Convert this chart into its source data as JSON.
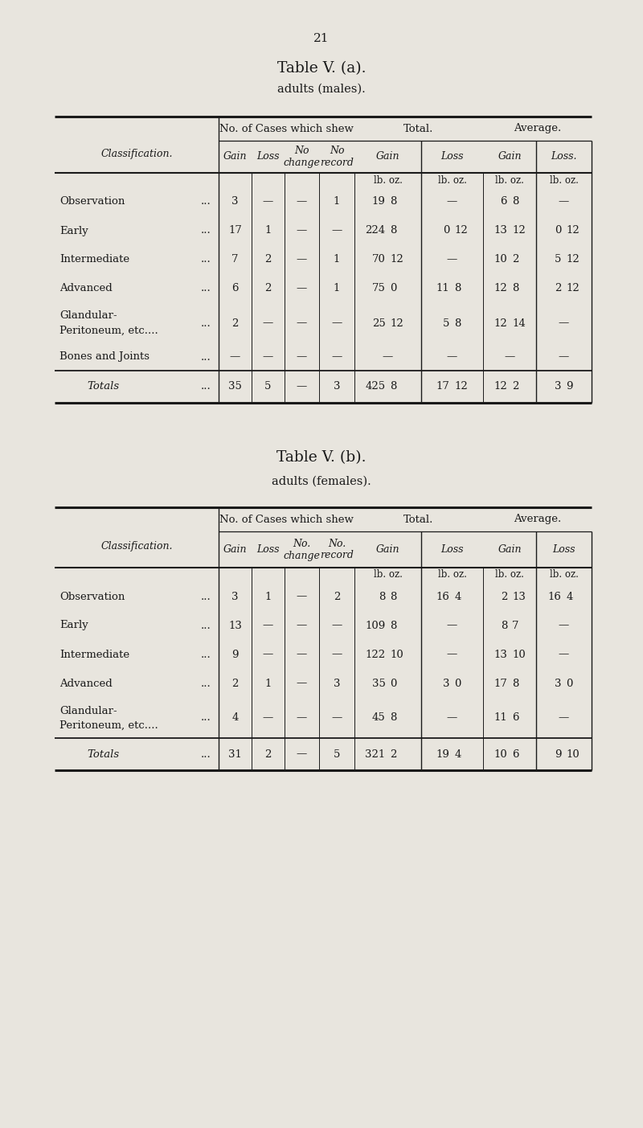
{
  "page_number": "21",
  "bg_color": "#e8e5de",
  "text_color": "#1a1a1a",
  "table_a": {
    "title1": "Table V. (a).",
    "title2": "adults (males).",
    "rows": [
      [
        "Observation",
        "3",
        "—",
        "—",
        "1",
        "19",
        "8",
        "—",
        "",
        "6",
        "8",
        "—",
        ""
      ],
      [
        "Early",
        "17",
        "1",
        "—",
        "—",
        "224",
        "8",
        "0",
        "12",
        "13",
        "12",
        "0",
        "12"
      ],
      [
        "Intermediate",
        "7",
        "2",
        "—",
        "1",
        "70",
        "12",
        "—",
        "",
        "10",
        "2",
        "5",
        "12"
      ],
      [
        "Advanced",
        "6",
        "2",
        "—",
        "1",
        "75",
        "0",
        "11",
        "8",
        "12",
        "8",
        "2",
        "12"
      ],
      [
        "Glandular-\nPeritoneum, etc....",
        "2",
        "—",
        "—",
        "—",
        "25",
        "12",
        "5",
        "8",
        "12",
        "14",
        "—",
        ""
      ],
      [
        "Bones and Joints",
        "—",
        "—",
        "—",
        "—",
        "—",
        "",
        "—",
        "",
        "—",
        "",
        "—",
        ""
      ]
    ],
    "totals_row": [
      "Totals",
      "35",
      "5",
      "—",
      "3",
      "425",
      "8",
      "17",
      "12",
      "12",
      "2",
      "3",
      "9"
    ]
  },
  "table_b": {
    "title1": "Table V. (b).",
    "title2": "adults (females).",
    "rows": [
      [
        "Observation",
        "3",
        "1",
        "—",
        "2",
        "8",
        "8",
        "16",
        "4",
        "2",
        "13",
        "16",
        "4"
      ],
      [
        "Early",
        "13",
        "—",
        "—",
        "—",
        "109",
        "8",
        "—",
        "",
        "8",
        "7",
        "—",
        ""
      ],
      [
        "Intermediate",
        "9",
        "—",
        "—",
        "—",
        "122",
        "10",
        "—",
        "",
        "13",
        "10",
        "—",
        ""
      ],
      [
        "Advanced",
        "2",
        "1",
        "—",
        "3",
        "35",
        "0",
        "3",
        "0",
        "17",
        "8",
        "3",
        "0"
      ],
      [
        "Glandular-\nPeritoneum, etc....",
        "4",
        "—",
        "—",
        "—",
        "45",
        "8",
        "—",
        "",
        "11",
        "6",
        "—",
        ""
      ]
    ],
    "totals_row": [
      "Totals",
      "31",
      "2",
      "—",
      "5",
      "321",
      "2",
      "19",
      "4",
      "10",
      "6",
      "9",
      "10"
    ]
  }
}
